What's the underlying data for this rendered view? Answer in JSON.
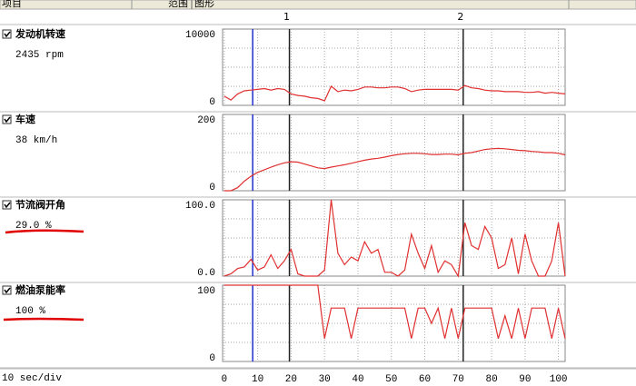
{
  "header": {
    "columns": [
      "项目",
      "范围",
      "图形"
    ]
  },
  "cursors": [
    {
      "label": "1",
      "x": 19.5
    },
    {
      "label": "2",
      "x": 71.5
    }
  ],
  "marker_x": 8.5,
  "xlim": [
    -0.5,
    102
  ],
  "xticks": [
    0,
    10,
    20,
    30,
    40,
    50,
    60,
    70,
    80,
    90,
    100
  ],
  "footer": "10 sec/div",
  "x": [
    0,
    2,
    4,
    6,
    8,
    10,
    12,
    14,
    16,
    18,
    20,
    22,
    24,
    26,
    28,
    30,
    32,
    34,
    36,
    38,
    40,
    42,
    44,
    46,
    48,
    50,
    52,
    54,
    56,
    58,
    60,
    62,
    64,
    66,
    68,
    70,
    72,
    74,
    76,
    78,
    80,
    82,
    84,
    86,
    88,
    90,
    92,
    94,
    96,
    98,
    100,
    102
  ],
  "panels": [
    {
      "label": "发动机转速",
      "reading": "2435 rpm",
      "ylim": [
        0,
        10000
      ],
      "yticks": [
        0,
        10000
      ],
      "color": "#e03030",
      "values": [
        1200,
        700,
        1500,
        1900,
        2000,
        2100,
        2200,
        2000,
        2200,
        2100,
        1500,
        1300,
        1200,
        1000,
        900,
        600,
        2500,
        1800,
        2000,
        1900,
        2100,
        2400,
        2400,
        2300,
        2300,
        2400,
        2400,
        2200,
        1800,
        2000,
        2100,
        2100,
        2100,
        2100,
        2100,
        2000,
        2600,
        2300,
        2200,
        2000,
        1900,
        1900,
        1800,
        1800,
        1800,
        1700,
        1700,
        1800,
        1600,
        1700,
        1600,
        1500
      ]
    },
    {
      "label": "车速",
      "reading": "38 km/h",
      "ylim": [
        0,
        200
      ],
      "yticks": [
        0,
        200
      ],
      "color": "#e03030",
      "values": [
        0,
        0,
        8,
        25,
        38,
        48,
        55,
        62,
        68,
        73,
        76,
        75,
        70,
        65,
        60,
        58,
        62,
        65,
        68,
        72,
        76,
        80,
        83,
        85,
        88,
        92,
        95,
        97,
        98,
        98,
        97,
        95,
        95,
        96,
        96,
        94,
        98,
        100,
        104,
        108,
        110,
        111,
        110,
        108,
        106,
        105,
        103,
        102,
        100,
        100,
        98,
        94
      ]
    },
    {
      "label": "节流阀开角",
      "reading": "29.0 %",
      "ylim": [
        0,
        100
      ],
      "yticks": [
        {
          "value": 0,
          "label": "0.0"
        },
        {
          "value": 100,
          "label": "100.0"
        }
      ],
      "color": "#e03030",
      "values": [
        0,
        3,
        10,
        12,
        22,
        8,
        12,
        28,
        10,
        20,
        35,
        3,
        0,
        0,
        0,
        8,
        100,
        30,
        15,
        25,
        20,
        45,
        30,
        35,
        5,
        5,
        0,
        8,
        55,
        30,
        10,
        40,
        5,
        20,
        15,
        0,
        70,
        40,
        35,
        65,
        50,
        10,
        15,
        50,
        3,
        55,
        20,
        0,
        0,
        20,
        70,
        0
      ]
    },
    {
      "label": "燃油泵能率",
      "reading": "100 %",
      "ylim": [
        0,
        100
      ],
      "yticks": [
        0,
        100
      ],
      "color": "#e03030",
      "values": [
        100,
        100,
        100,
        100,
        100,
        100,
        100,
        100,
        100,
        100,
        100,
        100,
        100,
        100,
        100,
        30,
        70,
        70,
        70,
        30,
        70,
        70,
        70,
        70,
        70,
        70,
        70,
        70,
        30,
        70,
        70,
        50,
        70,
        30,
        70,
        30,
        70,
        70,
        70,
        70,
        70,
        30,
        60,
        30,
        70,
        30,
        70,
        70,
        70,
        30,
        70,
        30
      ]
    }
  ]
}
